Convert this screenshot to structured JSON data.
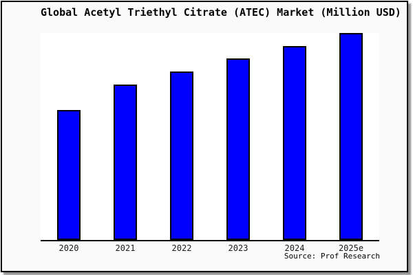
{
  "title": "Global Acetyl Triethyl Citrate (ATEC) Market (Million USD)",
  "source": "Source: Prof Research",
  "chart_data": {
    "type": "bar",
    "title": "Global Acetyl Triethyl Citrate (ATEC) Market (Million USD)",
    "categories": [
      "2020",
      "2021",
      "2022",
      "2023",
      "2024",
      "2025e"
    ],
    "values": [
      189,
      226,
      245,
      264,
      282,
      301
    ],
    "value_scale": "relative bar heights in pixels (no y-axis scale shown on chart)",
    "xlabel": "",
    "ylabel": "",
    "y_axis": "hidden",
    "grid": false,
    "legend": "none",
    "bar_fill_color": "#0000ff",
    "bar_edge_color": "#000000",
    "annotation": "Source: Prof Research"
  },
  "colors": {
    "frame_background": "#fafafa",
    "plot_background": "#ffffff",
    "border": "#000000",
    "bar_fill": "#0000ff",
    "tick_label": "#1a1a1a"
  }
}
